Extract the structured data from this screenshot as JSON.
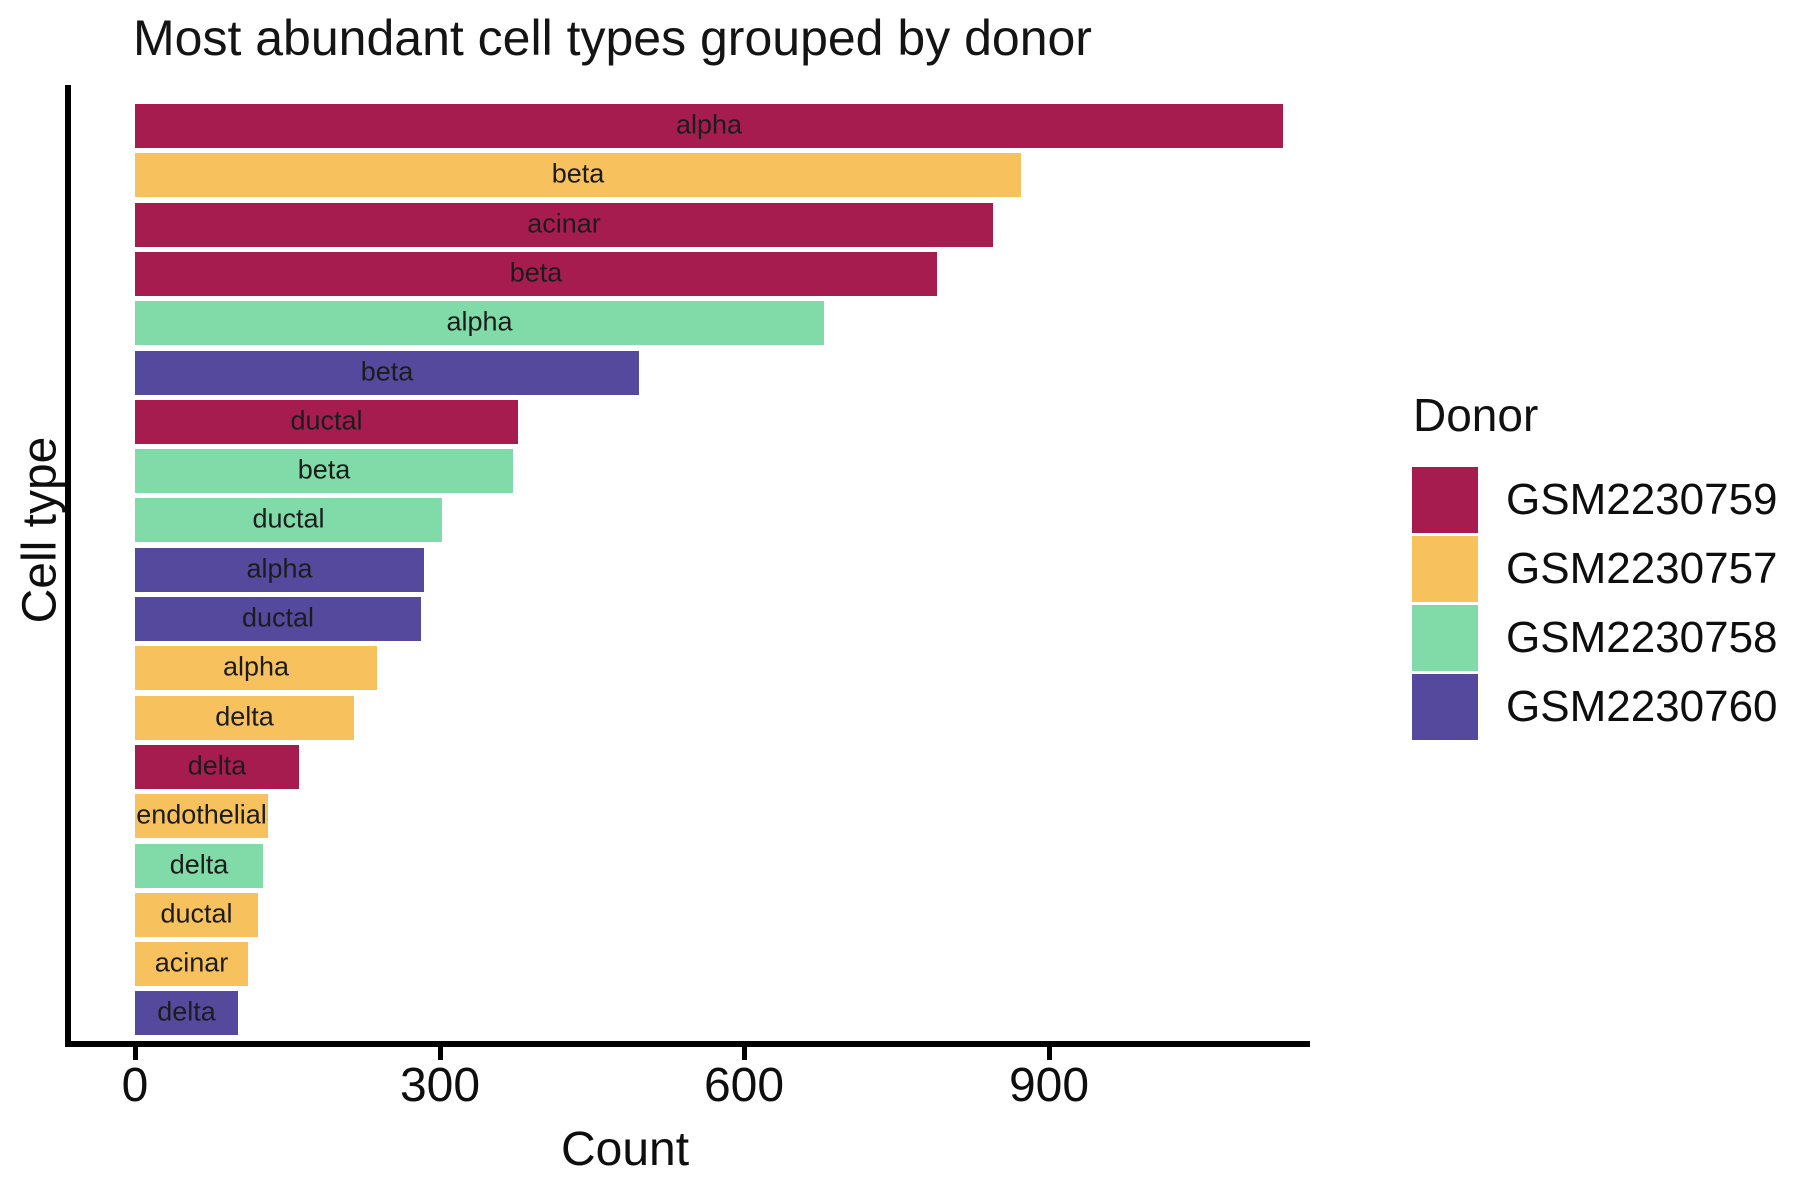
{
  "chart_data": {
    "type": "bar",
    "orientation": "horizontal",
    "title": "Most abundant cell types grouped by donor",
    "xlabel": "Count",
    "ylabel": "Cell type",
    "legend_title": "Donor",
    "xticks": [
      0,
      300,
      600,
      900
    ],
    "xlim": [
      0,
      1150
    ],
    "grid": false,
    "background_color": "#ffffff",
    "axis_color": "#000000",
    "bar_label_color": "#1c1c1c",
    "legend_position": "right",
    "donors": [
      {
        "name": "GSM2230759",
        "color": "#A61C4E"
      },
      {
        "name": "GSM2230757",
        "color": "#F7C15D"
      },
      {
        "name": "GSM2230758",
        "color": "#80DBA9"
      },
      {
        "name": "GSM2230760",
        "color": "#55499E"
      }
    ],
    "bars": [
      {
        "cell_type": "alpha",
        "donor": "GSM2230759",
        "count": 1130
      },
      {
        "cell_type": "beta",
        "donor": "GSM2230757",
        "count": 872
      },
      {
        "cell_type": "acinar",
        "donor": "GSM2230759",
        "count": 845
      },
      {
        "cell_type": "beta",
        "donor": "GSM2230759",
        "count": 790
      },
      {
        "cell_type": "alpha",
        "donor": "GSM2230758",
        "count": 678
      },
      {
        "cell_type": "beta",
        "donor": "GSM2230760",
        "count": 496
      },
      {
        "cell_type": "ductal",
        "donor": "GSM2230759",
        "count": 377
      },
      {
        "cell_type": "beta",
        "donor": "GSM2230758",
        "count": 372
      },
      {
        "cell_type": "ductal",
        "donor": "GSM2230758",
        "count": 302
      },
      {
        "cell_type": "alpha",
        "donor": "GSM2230760",
        "count": 285
      },
      {
        "cell_type": "ductal",
        "donor": "GSM2230760",
        "count": 282
      },
      {
        "cell_type": "alpha",
        "donor": "GSM2230757",
        "count": 238
      },
      {
        "cell_type": "delta",
        "donor": "GSM2230757",
        "count": 216
      },
      {
        "cell_type": "delta",
        "donor": "GSM2230759",
        "count": 161
      },
      {
        "cell_type": "endothelial",
        "donor": "GSM2230757",
        "count": 131
      },
      {
        "cell_type": "delta",
        "donor": "GSM2230758",
        "count": 126
      },
      {
        "cell_type": "ductal",
        "donor": "GSM2230757",
        "count": 121
      },
      {
        "cell_type": "acinar",
        "donor": "GSM2230757",
        "count": 111
      },
      {
        "cell_type": "delta",
        "donor": "GSM2230760",
        "count": 101
      }
    ]
  }
}
